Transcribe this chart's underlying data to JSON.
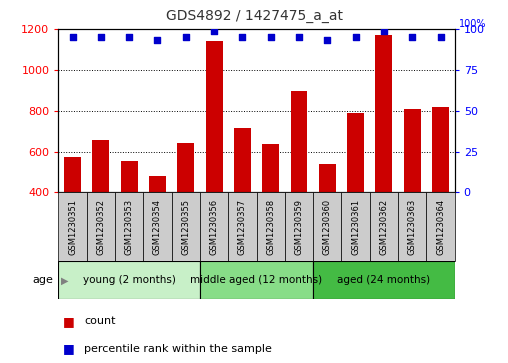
{
  "title": "GDS4892 / 1427475_a_at",
  "samples": [
    "GSM1230351",
    "GSM1230352",
    "GSM1230353",
    "GSM1230354",
    "GSM1230355",
    "GSM1230356",
    "GSM1230357",
    "GSM1230358",
    "GSM1230359",
    "GSM1230360",
    "GSM1230361",
    "GSM1230362",
    "GSM1230363",
    "GSM1230364"
  ],
  "counts": [
    575,
    655,
    555,
    480,
    640,
    1140,
    715,
    635,
    895,
    540,
    790,
    1170,
    810,
    820
  ],
  "percentiles": [
    95,
    95,
    95,
    93,
    95,
    99,
    95,
    95,
    95,
    93,
    95,
    99,
    95,
    95
  ],
  "ylim_left": [
    400,
    1200
  ],
  "ylim_right": [
    0,
    100
  ],
  "yticks_left": [
    400,
    600,
    800,
    1000,
    1200
  ],
  "yticks_right": [
    0,
    25,
    50,
    75,
    100
  ],
  "groups": [
    {
      "label": "young (2 months)",
      "start": 0,
      "end": 5,
      "color": "#C8F0C8"
    },
    {
      "label": "middle aged (12 months)",
      "start": 5,
      "end": 9,
      "color": "#88DD88"
    },
    {
      "label": "aged (24 months)",
      "start": 9,
      "end": 14,
      "color": "#44BB44"
    }
  ],
  "bar_color": "#CC0000",
  "dot_color": "#0000CC",
  "grid_color": "#000000",
  "cell_bg": "#CCCCCC",
  "plot_bg": "#FFFFFF",
  "age_label": "age",
  "legend_count_label": "count",
  "legend_pct_label": "percentile rank within the sample",
  "title_color": "#333333",
  "title_fontsize": 10,
  "ytick_fontsize": 8,
  "xtick_fontsize": 6,
  "legend_fontsize": 8,
  "group_fontsize": 7.5
}
